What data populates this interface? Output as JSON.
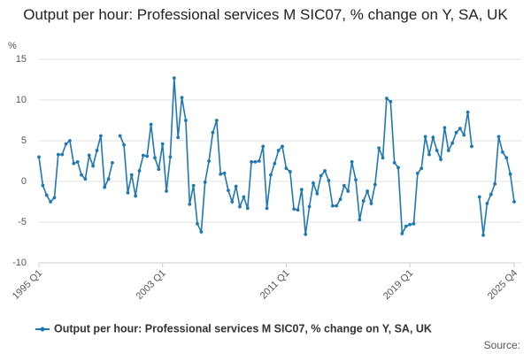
{
  "chart_data": {
    "type": "line",
    "title": "Output per hour: Professional services M SIC07, % change on Y, SA, UK",
    "y_label": "%",
    "source": "Source:",
    "categories": [
      "1995 Q1",
      null,
      null,
      null,
      null,
      null,
      null,
      null,
      null,
      null,
      null,
      null,
      null,
      null,
      null,
      null,
      null,
      null,
      null,
      null,
      null,
      null,
      null,
      null,
      null,
      null,
      null,
      null,
      null,
      null,
      null,
      null,
      "2003 Q1",
      null,
      null,
      null,
      null,
      null,
      null,
      null,
      null,
      null,
      null,
      null,
      null,
      null,
      null,
      null,
      null,
      null,
      null,
      null,
      null,
      null,
      null,
      null,
      null,
      null,
      null,
      null,
      null,
      null,
      null,
      null,
      "2011 Q1",
      null,
      null,
      null,
      null,
      null,
      null,
      null,
      null,
      null,
      null,
      null,
      null,
      null,
      null,
      null,
      null,
      null,
      null,
      null,
      null,
      null,
      null,
      null,
      null,
      null,
      null,
      null,
      null,
      null,
      null,
      null,
      "2019 Q1",
      null,
      null,
      null,
      null,
      null,
      null,
      null,
      null,
      null,
      null,
      null,
      null,
      null,
      null,
      null,
      null,
      null,
      null,
      null,
      null,
      null,
      null,
      null,
      null,
      null,
      null,
      "2025 Q4"
    ],
    "series": [
      {
        "name": "Output per hour: Professional services M SIC07, % change on Y, SA, UK",
        "color": "#1f78b4",
        "values": [
          3.0,
          -0.5,
          -1.7,
          -2.5,
          -2.0,
          3.3,
          3.3,
          4.6,
          5.0,
          2.2,
          2.4,
          0.8,
          0.3,
          3.2,
          1.9,
          3.8,
          5.6,
          -0.7,
          0.3,
          2.3,
          null,
          5.6,
          4.5,
          -1.4,
          0.8,
          -1.8,
          1.3,
          3.2,
          3.1,
          7.0,
          2.9,
          1.5,
          4.6,
          -1.2,
          3.0,
          12.7,
          5.4,
          10.3,
          7.5,
          -2.8,
          -0.5,
          -5.2,
          -6.2,
          -0.1,
          2.5,
          6.0,
          7.5,
          0.9,
          1.0,
          -1.1,
          -2.5,
          -0.6,
          -3.1,
          -1.9,
          -3.3,
          2.4,
          2.4,
          2.5,
          4.3,
          -3.3,
          0.8,
          2.2,
          3.8,
          4.3,
          1.6,
          1.2,
          -3.4,
          -3.5,
          -1.0,
          -6.5,
          -3.1,
          -0.2,
          -1.5,
          0.7,
          1.3,
          0.1,
          -3.0,
          -3.0,
          -2.2,
          -0.5,
          -1.2,
          2.4,
          0.2,
          -4.7,
          -2.4,
          -1.2,
          -2.7,
          -0.4,
          4.1,
          2.9,
          10.2,
          9.8,
          2.3,
          1.7,
          -6.4,
          -5.5,
          -5.3,
          -5.2,
          1.0,
          1.6,
          5.5,
          3.3,
          5.4,
          3.8,
          2.7,
          6.6,
          3.8,
          4.7,
          6.0,
          6.5,
          5.7,
          8.5,
          4.3,
          null,
          -1.9,
          -6.6,
          -2.7,
          -1.6,
          -0.3,
          5.5,
          3.6,
          2.9,
          0.9,
          -2.5
        ]
      }
    ],
    "ylim": [
      -10,
      15
    ],
    "yticks": [
      -10,
      -5,
      0,
      5,
      10,
      15
    ],
    "grid": true
  }
}
